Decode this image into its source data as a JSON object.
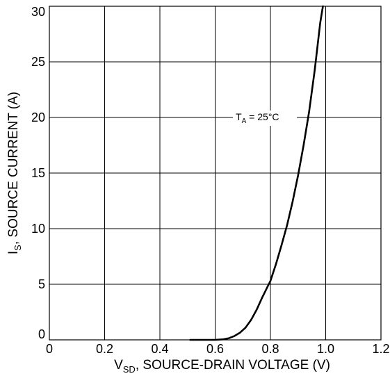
{
  "chart_data": {
    "type": "line",
    "xlabel": {
      "main": "V",
      "sub": "SD",
      "rest": ", SOURCE-DRAIN VOLTAGE (V)"
    },
    "ylabel": {
      "main": "I",
      "sub": "S",
      "rest": ", SOURCE CURRENT (A)"
    },
    "xlim": [
      0,
      1.2
    ],
    "ylim": [
      0,
      30
    ],
    "x_ticks": [
      0,
      0.2,
      0.4,
      0.6,
      0.8,
      1.0,
      1.2
    ],
    "x_tick_labels": [
      "0",
      "0.2",
      "0.4",
      "0.6",
      "0.8",
      "1.0",
      "1.2"
    ],
    "y_ticks": [
      0,
      5,
      10,
      15,
      20,
      25,
      30
    ],
    "y_tick_labels": [
      "0",
      "5",
      "10",
      "15",
      "20",
      "25",
      "30"
    ],
    "grid": true,
    "series": [
      {
        "x": [
          0.51,
          0.55,
          0.6,
          0.63,
          0.65,
          0.67,
          0.69,
          0.71,
          0.73,
          0.75,
          0.77,
          0.79,
          0.8,
          0.82,
          0.84,
          0.86,
          0.88,
          0.9,
          0.92,
          0.94,
          0.96,
          0.98,
          0.99
        ],
        "y": [
          0,
          0,
          0,
          0.05,
          0.15,
          0.35,
          0.65,
          1.1,
          1.8,
          2.7,
          3.8,
          4.8,
          5.3,
          6.8,
          8.5,
          10.3,
          12.4,
          14.8,
          17.5,
          20.5,
          24.2,
          28.5,
          30
        ]
      }
    ],
    "annotation": {
      "main": "T",
      "sub": "A",
      "rest": " = 25°C",
      "x": 0.775,
      "y": 20
    }
  }
}
